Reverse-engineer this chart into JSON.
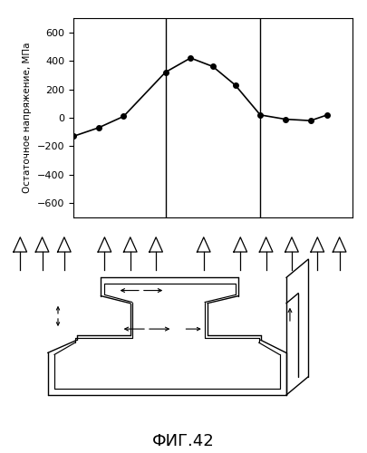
{
  "title": "",
  "ylabel": "Остаточное напряжение, МПа",
  "yticks": [
    -600,
    -400,
    -200,
    0,
    200,
    400,
    600
  ],
  "ylim": [
    -700,
    700
  ],
  "vlines": [
    0.33,
    0.67
  ],
  "x_data": [
    0.0,
    0.09,
    0.18,
    0.33,
    0.42,
    0.5,
    0.58,
    0.67,
    0.76,
    0.85,
    0.91
  ],
  "y_data": [
    -130,
    -70,
    10,
    320,
    420,
    360,
    230,
    20,
    -10,
    -20,
    20
  ],
  "caption": "ФИГ.42",
  "bg_color": "#ffffff",
  "line_color": "#000000",
  "marker": "o",
  "markersize": 4
}
